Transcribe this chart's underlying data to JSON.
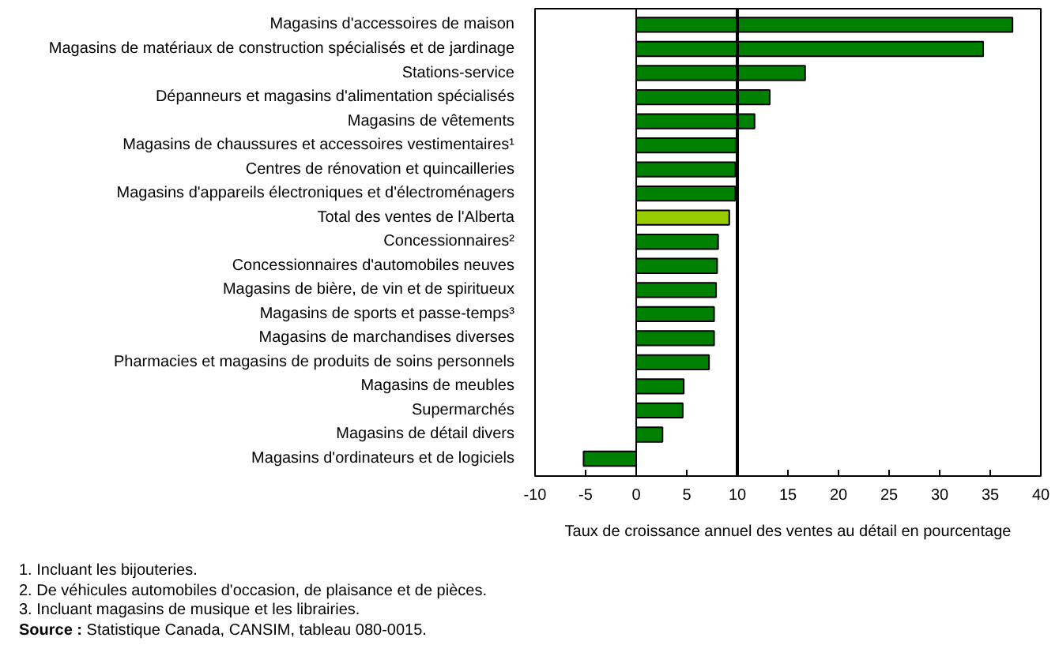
{
  "chart_data": {
    "type": "bar",
    "orientation": "horizontal",
    "categories": [
      "Magasins d'accessoires de maison",
      "Magasins de matériaux de construction spécialisés et de jardinage",
      "Stations-service",
      "Dépanneurs et magasins d'alimentation spécialisés",
      "Magasins de vêtements",
      "Magasins de chaussures et accessoires vestimentaires¹",
      "Centres de rénovation et quincailleries",
      "Magasins d'appareils électroniques et d'électroménagers",
      "Total des ventes de l'Alberta",
      "Concessionnaires²",
      "Concessionnaires d'automobiles neuves",
      "Magasins de bière, de vin et de spiritueux",
      "Magasins de sports et passe-temps³",
      "Magasins de marchandises diverses",
      "Pharmacies et magasins de produits de soins personnels",
      "Magasins de meubles",
      "Supermarchés",
      "Magasins de détail divers",
      "Magasins d'ordinateurs et de logiciels"
    ],
    "values": [
      37.2,
      34.3,
      16.7,
      13.2,
      11.7,
      9.9,
      9.8,
      9.8,
      9.2,
      8.1,
      8.0,
      7.9,
      7.7,
      7.7,
      7.2,
      4.7,
      4.6,
      2.6,
      -5.2
    ],
    "colors": [
      "#008000",
      "#008000",
      "#008000",
      "#008000",
      "#008000",
      "#008000",
      "#008000",
      "#008000",
      "#99cc00",
      "#008000",
      "#008000",
      "#008000",
      "#008000",
      "#008000",
      "#008000",
      "#008000",
      "#008000",
      "#008000",
      "#008000"
    ],
    "xlabel": "Taux de croissance annuel des ventes au détail en pourcentage",
    "xlim": [
      -10,
      40
    ],
    "xticks": [
      -10,
      -5,
      0,
      5,
      10,
      15,
      20,
      25,
      30,
      35,
      40
    ],
    "grid": false,
    "ref_lines": [
      {
        "axis": "x",
        "value": 10
      }
    ],
    "annotations": [
      "1. Incluant les bijouteries.",
      "2. De véhicules automobiles d'occasion, de plaisance et de pièces.",
      "3. Incluant magasins de musique et les librairies.",
      "Source : Statistique Canada, CANSIM, tableau 080-0015."
    ]
  }
}
